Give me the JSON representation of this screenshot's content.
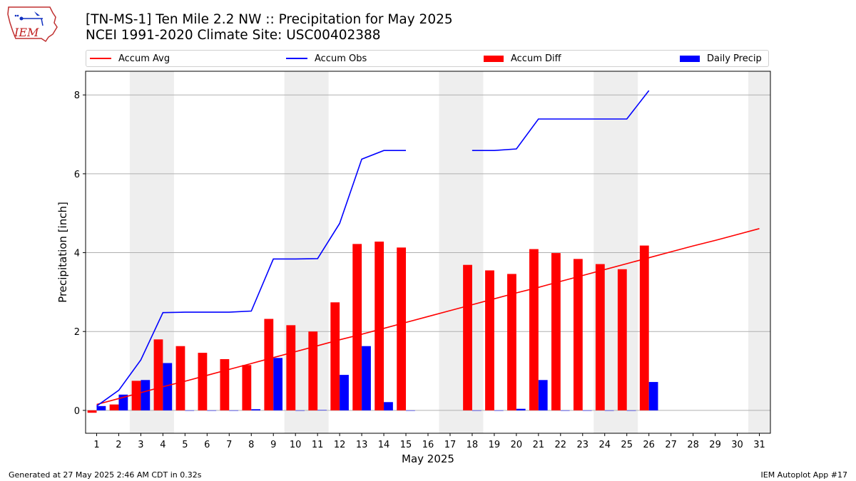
{
  "header": {
    "logo_text": "IEM",
    "title_line1": "[TN-MS-1] Ten Mile 2.2 NW :: Precipitation for May 2025",
    "title_line2": "NCEI 1991-2020 Climate Site: USC00402388"
  },
  "legend": [
    {
      "label": "Accum Avg",
      "kind": "line",
      "color": "#ff0000"
    },
    {
      "label": "Accum Obs",
      "kind": "line",
      "color": "#0000ff"
    },
    {
      "label": "Accum Diff",
      "kind": "bar",
      "color": "#ff0000"
    },
    {
      "label": "Daily Precip",
      "kind": "bar",
      "color": "#0000ff"
    }
  ],
  "footer": {
    "left": "Generated at 27 May 2025 2:46 AM CDT in 0.32s",
    "right": "IEM Autoplot App #17"
  },
  "chart_data": {
    "type": "bar",
    "xlabel": "May 2025",
    "ylabel": "Precipitation [inch]",
    "xlim": [
      0.5,
      31.5
    ],
    "ylim": [
      -0.58,
      8.6
    ],
    "x": [
      1,
      2,
      3,
      4,
      5,
      6,
      7,
      8,
      9,
      10,
      11,
      12,
      13,
      14,
      15,
      16,
      17,
      18,
      19,
      20,
      21,
      22,
      23,
      24,
      25,
      26,
      27,
      28,
      29,
      30,
      31
    ],
    "yticks": [
      0,
      2,
      4,
      6,
      8
    ],
    "grid": "horizontal",
    "weekend_shading": [
      [
        2.5,
        4.5
      ],
      [
        9.5,
        11.5
      ],
      [
        16.5,
        18.5
      ],
      [
        23.5,
        25.5
      ],
      [
        30.5,
        31.5
      ]
    ],
    "colors": {
      "avg": "#ff0000",
      "obs": "#0000ff",
      "diff": "#ff0000",
      "daily": "#0000ff",
      "shade": "#eeeeee",
      "grid": "#b0b0b0"
    },
    "series": [
      {
        "name": "Accum Avg",
        "kind": "line",
        "values": [
          0.15,
          0.3,
          0.45,
          0.6,
          0.74,
          0.89,
          1.04,
          1.19,
          1.34,
          1.49,
          1.64,
          1.79,
          1.93,
          2.08,
          2.23,
          2.38,
          2.53,
          2.68,
          2.83,
          2.98,
          3.12,
          3.27,
          3.42,
          3.57,
          3.72,
          3.87,
          4.02,
          4.17,
          4.31,
          4.46,
          4.61
        ]
      },
      {
        "name": "Accum Obs",
        "kind": "line",
        "values": [
          0.11,
          0.51,
          1.28,
          2.48,
          2.49,
          2.49,
          2.49,
          2.52,
          3.84,
          3.84,
          3.85,
          4.74,
          6.37,
          6.59,
          6.59,
          null,
          null,
          6.59,
          6.59,
          6.63,
          7.39,
          7.39,
          7.39,
          7.39,
          7.39,
          8.11,
          null,
          null,
          null,
          null,
          null
        ]
      },
      {
        "name": "Accum Diff",
        "kind": "bar",
        "values": [
          -0.06,
          0.15,
          0.75,
          1.8,
          1.63,
          1.46,
          1.3,
          1.15,
          2.32,
          2.16,
          2.0,
          2.74,
          4.22,
          4.28,
          4.13,
          null,
          null,
          3.69,
          3.55,
          3.46,
          4.09,
          3.99,
          3.84,
          3.71,
          3.58,
          4.18,
          null,
          null,
          null,
          null,
          null
        ]
      },
      {
        "name": "Daily Precip",
        "kind": "bar",
        "values": [
          0.11,
          0.4,
          0.77,
          1.2,
          0.0,
          0.0,
          0.0,
          0.03,
          1.33,
          0.0,
          0.01,
          0.9,
          1.63,
          0.21,
          0.0,
          null,
          null,
          0.0,
          0.0,
          0.04,
          0.77,
          0.0,
          0.0,
          0.0,
          0.0,
          0.72,
          null,
          null,
          null,
          null,
          null
        ]
      }
    ]
  }
}
